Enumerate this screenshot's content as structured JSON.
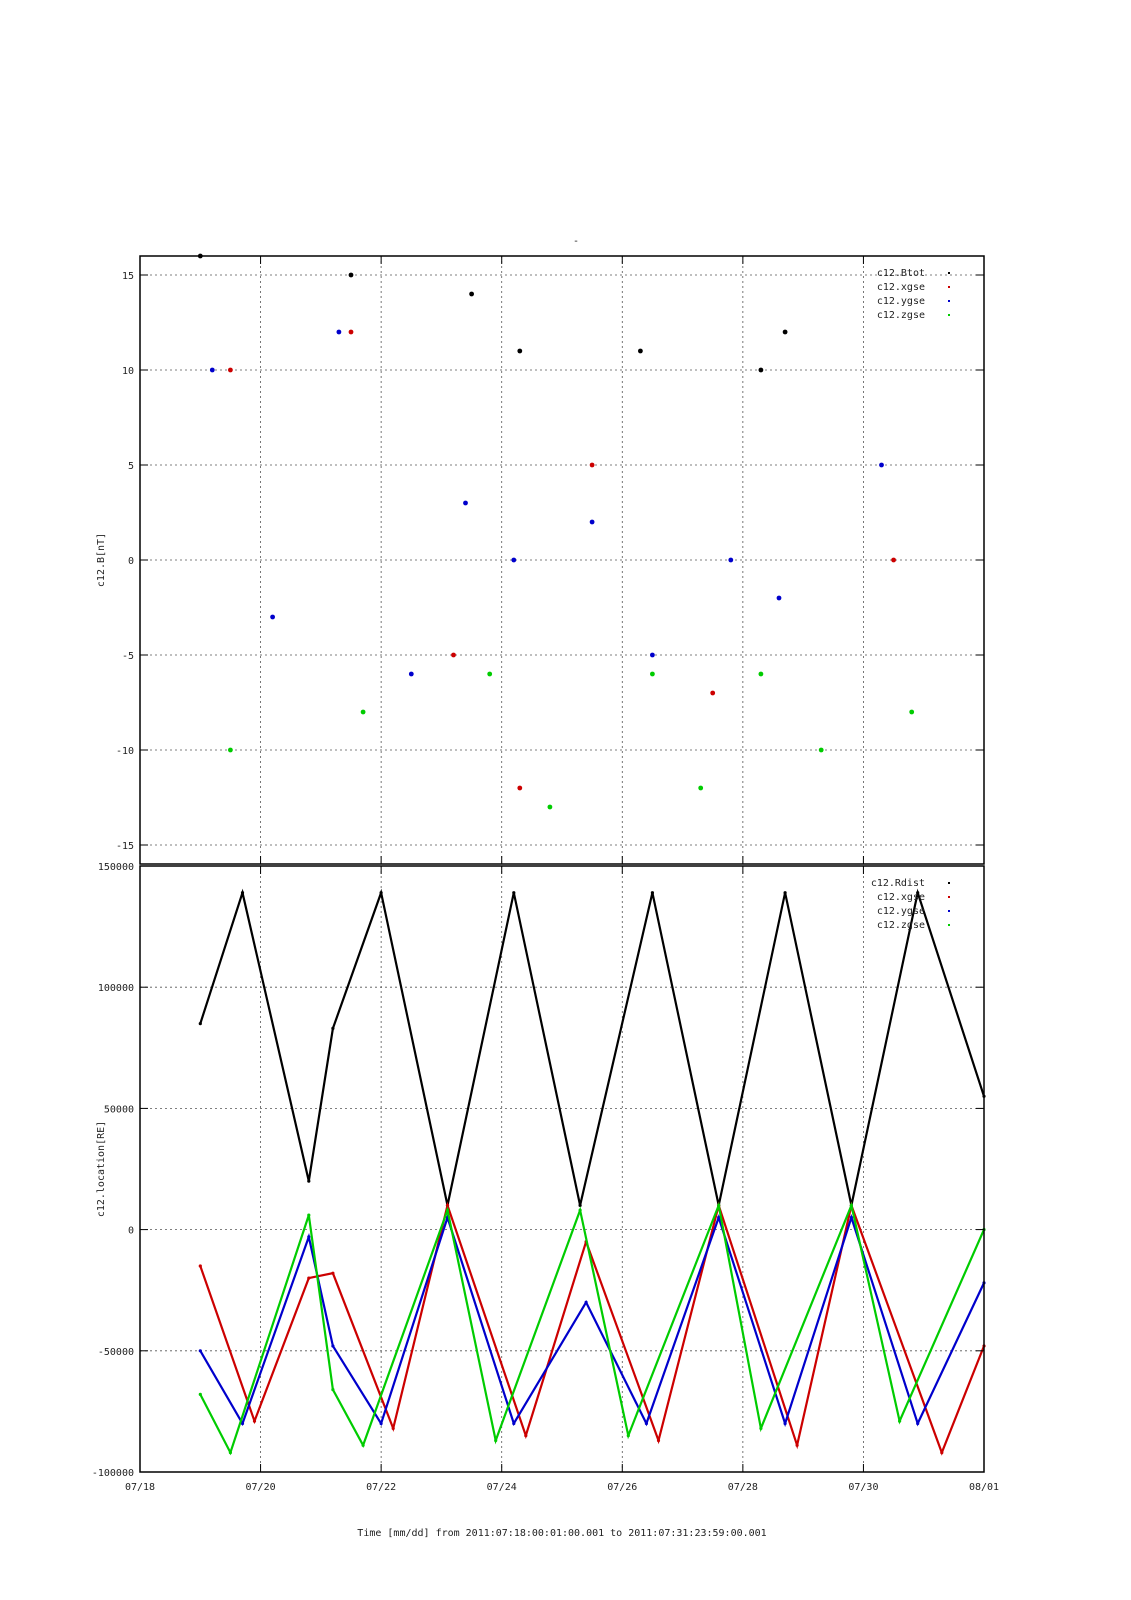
{
  "figure": {
    "top_mark": "-",
    "xlabel": "Time [mm/dd]  from 2011:07:18:00:01:00.001  to  2011:07:31:23:59:00.001",
    "x_tick_labels": [
      "07/18",
      "07/20",
      "07/22",
      "07/24",
      "07/26",
      "07/28",
      "07/30",
      "08/01"
    ]
  },
  "chart_data": [
    {
      "type": "scatter",
      "ylabel": "c12.B[nT]",
      "xlim": [
        "2011-07-18",
        "2011-08-01"
      ],
      "ylim": [
        -16,
        16
      ],
      "yticks": [
        -15,
        -10,
        -5,
        0,
        5,
        10,
        15
      ],
      "y_tick_labels": [
        "-15",
        "-10",
        "-5",
        "0",
        "5",
        "10",
        "15"
      ],
      "grid": true,
      "legend": "top-right",
      "series": [
        {
          "name": "c12.Btot",
          "color": "#000000",
          "x": [
            "2011-07-19",
            "2011-07-21.5",
            "2011-07-23.5",
            "2011-07-24.3",
            "2011-07-26.3",
            "2011-07-28.3",
            "2011-07-28.7"
          ],
          "y": [
            16,
            15,
            14,
            11,
            11,
            10,
            12
          ]
        },
        {
          "name": "c12.xgse",
          "color": "#cc0000",
          "x": [
            "2011-07-19.5",
            "2011-07-21.5",
            "2011-07-23.2",
            "2011-07-24.3",
            "2011-07-25.5",
            "2011-07-27.5",
            "2011-07-30.5"
          ],
          "y": [
            10,
            12,
            -5,
            -12,
            5,
            -7,
            0
          ]
        },
        {
          "name": "c12.ygse",
          "color": "#0000cc",
          "x": [
            "2011-07-19.2",
            "2011-07-20.2",
            "2011-07-21.3",
            "2011-07-22.5",
            "2011-07-23.4",
            "2011-07-24.2",
            "2011-07-25.5",
            "2011-07-26.5",
            "2011-07-27.8",
            "2011-07-28.6",
            "2011-07-30.3"
          ],
          "y": [
            10,
            -3,
            12,
            -6,
            3,
            0,
            2,
            -5,
            0,
            -2,
            5
          ]
        },
        {
          "name": "c12.zgse",
          "color": "#00cc00",
          "x": [
            "2011-07-19.5",
            "2011-07-21.7",
            "2011-07-23.8",
            "2011-07-24.8",
            "2011-07-26.5",
            "2011-07-27.3",
            "2011-07-28.3",
            "2011-07-29.3",
            "2011-07-30.8"
          ],
          "y": [
            -10,
            -8,
            -6,
            -13,
            -6,
            -12,
            -6,
            -10,
            -8
          ]
        }
      ]
    },
    {
      "type": "line",
      "ylabel": "c12.location[RE]",
      "xlim": [
        "2011-07-18",
        "2011-08-01"
      ],
      "ylim": [
        -100000,
        150000
      ],
      "yticks": [
        -100000,
        -50000,
        0,
        50000,
        100000,
        150000
      ],
      "y_tick_labels": [
        "-100000",
        "-50000",
        "0",
        "50000",
        "100000",
        "150000"
      ],
      "grid": true,
      "legend": "top-right",
      "series": [
        {
          "name": "c12.Rdist",
          "color": "#000000",
          "x": [
            "2011-07-19",
            "2011-07-19.7",
            "2011-07-20.8",
            "2011-07-21.2",
            "2011-07-22",
            "2011-07-23.1",
            "2011-07-24.2",
            "2011-07-25.3",
            "2011-07-26.5",
            "2011-07-27.6",
            "2011-07-28.7",
            "2011-07-29.8",
            "2011-07-30.9",
            "2011-08-01"
          ],
          "y": [
            85000,
            139000,
            20000,
            83000,
            139000,
            10000,
            139000,
            10000,
            139000,
            10000,
            139000,
            10000,
            139000,
            55000
          ]
        },
        {
          "name": "c12.xgse",
          "color": "#cc0000",
          "x": [
            "2011-07-19",
            "2011-07-19.9",
            "2011-07-20.8",
            "2011-07-21.2",
            "2011-07-22.2",
            "2011-07-23.1",
            "2011-07-24.4",
            "2011-07-25.4",
            "2011-07-26.6",
            "2011-07-27.6",
            "2011-07-28.9",
            "2011-07-29.8",
            "2011-07-31.3",
            "2011-08-01"
          ],
          "y": [
            -15000,
            -79000,
            -20000,
            -18000,
            -82000,
            10000,
            -85000,
            -5000,
            -87000,
            10000,
            -89000,
            10000,
            -92000,
            -48000
          ]
        },
        {
          "name": "c12.ygse",
          "color": "#0000cc",
          "x": [
            "2011-07-19",
            "2011-07-19.7",
            "2011-07-20.8",
            "2011-07-21.2",
            "2011-07-22",
            "2011-07-23.1",
            "2011-07-24.2",
            "2011-07-25.4",
            "2011-07-26.4",
            "2011-07-27.6",
            "2011-07-28.7",
            "2011-07-29.8",
            "2011-07-30.9",
            "2011-08-01"
          ],
          "y": [
            -50000,
            -80000,
            -3000,
            -48000,
            -80000,
            5000,
            -80000,
            -30000,
            -80000,
            5000,
            -80000,
            5000,
            -80000,
            -22000
          ]
        },
        {
          "name": "c12.zgse",
          "color": "#00cc00",
          "x": [
            "2011-07-19",
            "2011-07-19.5",
            "2011-07-20.8",
            "2011-07-21.2",
            "2011-07-21.7",
            "2011-07-23.1",
            "2011-07-23.9",
            "2011-07-25.3",
            "2011-07-26.1",
            "2011-07-27.6",
            "2011-07-28.3",
            "2011-07-29.8",
            "2011-07-30.6",
            "2011-08-01"
          ],
          "y": [
            -68000,
            -92000,
            6000,
            -66000,
            -89000,
            8000,
            -87000,
            8000,
            -85000,
            10000,
            -82000,
            10000,
            -79000,
            0
          ]
        }
      ]
    }
  ]
}
